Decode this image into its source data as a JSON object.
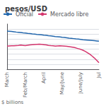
{
  "chart_data": {
    "type": "line",
    "title": "pesos/USD",
    "xlabel": "$ billions",
    "categories": [
      "March",
      null,
      null,
      null,
      null,
      null,
      null,
      null,
      "Feb/March",
      null,
      null,
      null,
      null,
      null,
      null,
      null,
      "April",
      null,
      null,
      null,
      null,
      null,
      null,
      null,
      "May/June",
      null,
      null,
      null,
      null,
      null,
      null,
      null,
      "June/July",
      null,
      null,
      null,
      null,
      null,
      null,
      null,
      "Jul"
    ],
    "series": [
      {
        "name": "Oficial",
        "color": "#2166ac",
        "values": [
          1130,
          1128,
          1126,
          1123,
          1120,
          1118,
          1115,
          1112,
          1110,
          1107,
          1105,
          1102,
          1100,
          1097,
          1095,
          1092,
          1089,
          1087,
          1084,
          1082,
          1079,
          1076,
          1074,
          1071,
          1068,
          1066,
          1063,
          1060,
          1058,
          1055,
          1052,
          1050,
          1047,
          1044,
          1042,
          1040,
          1038,
          1036,
          1034,
          1032,
          1030
        ]
      },
      {
        "name": "Mercado libre",
        "color": "#d4366e",
        "values": [
          980,
          982,
          984,
          983,
          985,
          987,
          990,
          988,
          986,
          989,
          992,
          994,
          996,
          998,
          1000,
          998,
          995,
          992,
          988,
          985,
          983,
          980,
          982,
          984,
          982,
          980,
          978,
          975,
          972,
          968,
          962,
          955,
          948,
          940,
          928,
          915,
          900,
          882,
          862,
          840,
          815
        ]
      }
    ],
    "ylim": [
      750,
      1200
    ],
    "yticks": [
      800,
      850,
      900,
      950,
      1000,
      1050,
      1100,
      1150
    ],
    "grid": true,
    "tick_labels": "x",
    "legend": "upper left"
  }
}
